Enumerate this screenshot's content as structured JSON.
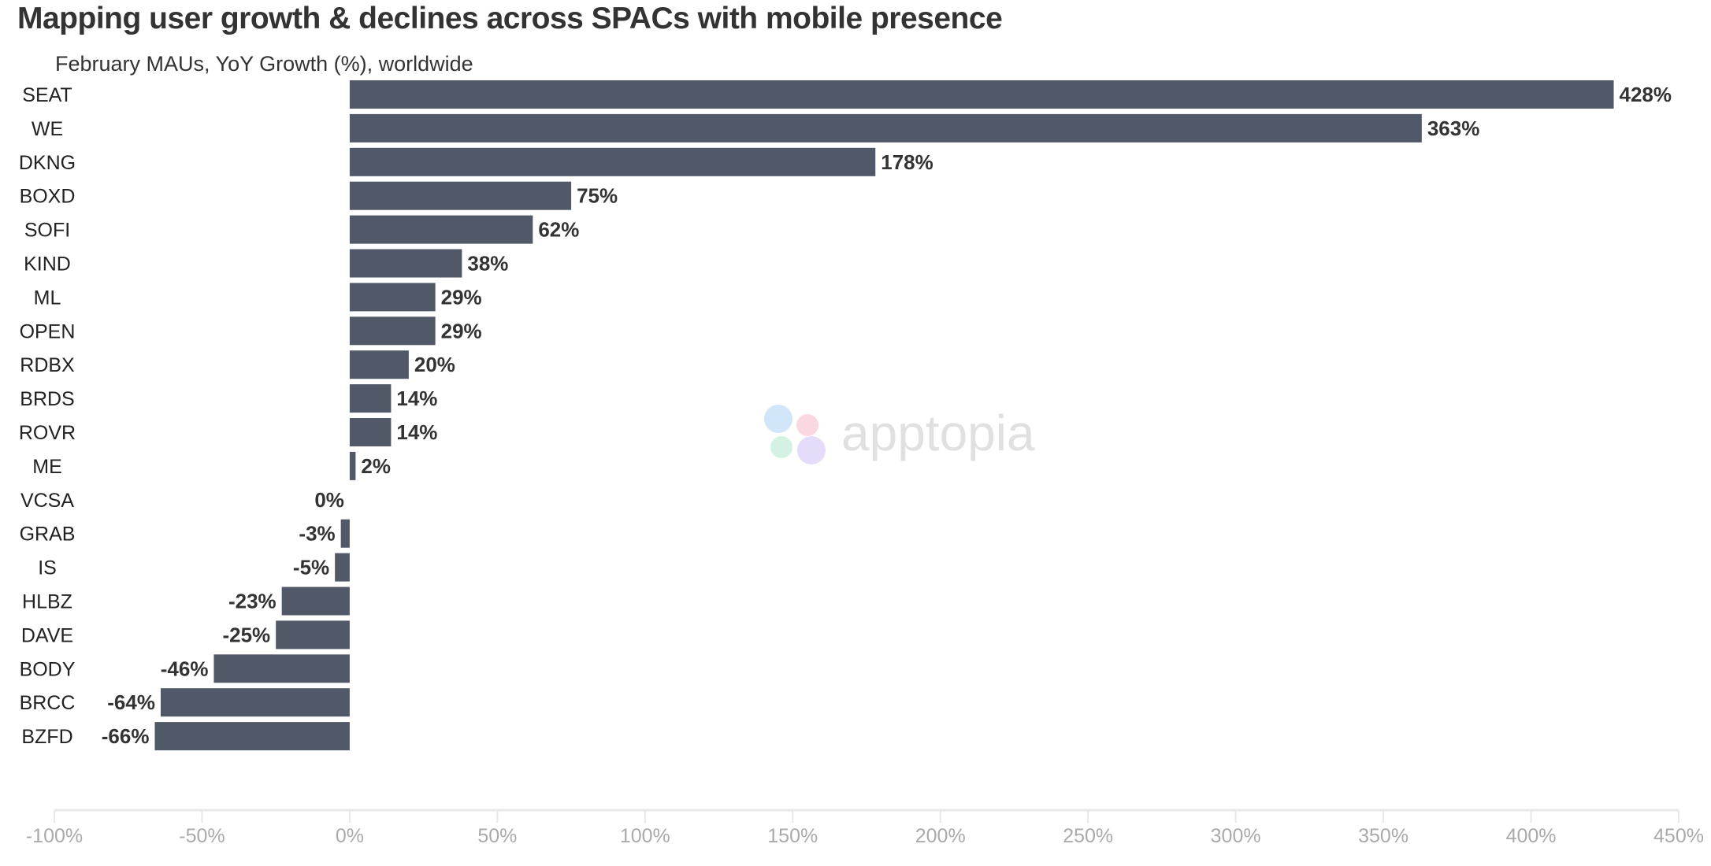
{
  "chart_data": {
    "type": "bar",
    "orientation": "horizontal",
    "title": "Mapping user growth & declines across SPACs with mobile presence",
    "subtitle": "February MAUs, YoY Growth (%), worldwide",
    "categories": [
      "SEAT",
      "WE",
      "DKNG",
      "BOXD",
      "SOFI",
      "KIND",
      "ML",
      "OPEN",
      "RDBX",
      "BRDS",
      "ROVR",
      "ME",
      "VCSA",
      "GRAB",
      "IS",
      "HLBZ",
      "DAVE",
      "BODY",
      "BRCC",
      "BZFD"
    ],
    "values": [
      428,
      363,
      178,
      75,
      62,
      38,
      29,
      29,
      20,
      14,
      14,
      2,
      0,
      -3,
      -5,
      -23,
      -25,
      -46,
      -64,
      -66
    ],
    "data_labels": [
      "428%",
      "363%",
      "178%",
      "75%",
      "62%",
      "38%",
      "29%",
      "29%",
      "20%",
      "14%",
      "14%",
      "2%",
      "0%",
      "-3%",
      "-5%",
      "-23%",
      "-25%",
      "-46%",
      "-64%",
      "-66%"
    ],
    "xlim": [
      -100,
      450
    ],
    "x_ticks": [
      "-100%",
      "-50%",
      "0%",
      "50%",
      "100%",
      "150%",
      "200%",
      "250%",
      "300%",
      "350%",
      "400%",
      "450%"
    ],
    "grid": false,
    "bar_color": "#515867"
  },
  "watermark": "apptopia"
}
